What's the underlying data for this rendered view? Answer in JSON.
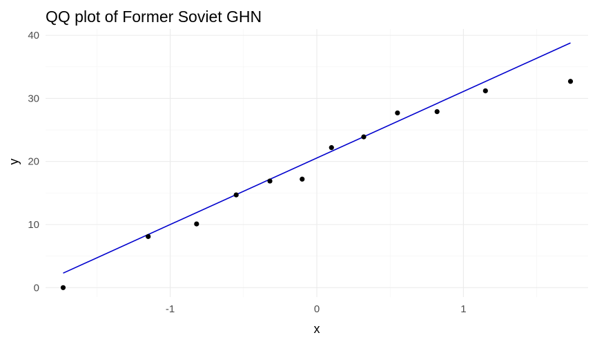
{
  "chart_data": {
    "type": "scatter",
    "title": "QQ plot of Former Soviet GHN",
    "xlabel": "x",
    "ylabel": "y",
    "xlim": [
      -1.85,
      1.85
    ],
    "ylim": [
      -1.5,
      41
    ],
    "x_ticks": [
      -1,
      0,
      1
    ],
    "x_tick_labels": [
      "-1",
      "0",
      "1"
    ],
    "y_ticks": [
      0,
      10,
      20,
      30,
      40
    ],
    "y_tick_labels": [
      "0",
      "10",
      "20",
      "30",
      "40"
    ],
    "grid": true,
    "legend": "none",
    "points": {
      "x": [
        -1.73,
        -1.15,
        -0.82,
        -0.55,
        -0.32,
        -0.1,
        0.1,
        0.32,
        0.55,
        0.82,
        1.15,
        1.73
      ],
      "y": [
        0.0,
        8.1,
        10.1,
        14.7,
        16.9,
        17.2,
        22.2,
        23.9,
        27.7,
        27.9,
        31.2,
        32.7
      ]
    },
    "reference_line": {
      "x": [
        -1.73,
        1.73
      ],
      "y": [
        2.3,
        38.8
      ]
    },
    "colors": {
      "points": "#000000",
      "line": "#0000cd",
      "grid": "#ebebeb",
      "tick_text": "#4d4d4d"
    }
  }
}
